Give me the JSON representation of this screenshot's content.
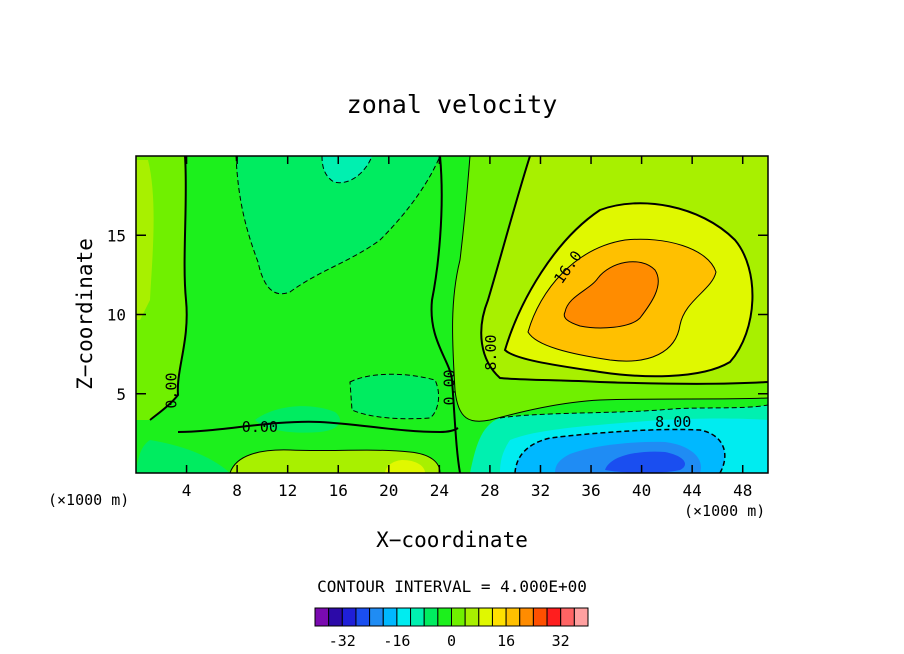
{
  "chart_data": {
    "type": "heatmap",
    "title": "zonal velocity",
    "xlabel": "X−coordinate",
    "ylabel": "Z−coordinate",
    "x_unit_left": "(×1000 m)",
    "x_unit_right": "(×1000 m)",
    "xlim": [
      0,
      50
    ],
    "ylim": [
      0,
      20
    ],
    "xticks": [
      4,
      8,
      12,
      16,
      20,
      24,
      28,
      32,
      36,
      40,
      44,
      48
    ],
    "yticks": [
      5,
      10,
      15
    ],
    "contour_interval_text": "CONTOUR INTERVAL = 4.000E+00",
    "contour_labels": [
      {
        "text": "16.0",
        "x": 34.5,
        "y": 12.8,
        "angle": -55
      },
      {
        "text": "8.00",
        "x": 28.5,
        "y": 7.6,
        "angle": -90
      },
      {
        "text": "8.00",
        "x": 42.5,
        "y": 2.9,
        "angle": 0
      },
      {
        "text": "0.00",
        "x": 3.2,
        "y": 5.2,
        "angle": -90
      },
      {
        "text": "0.00",
        "x": 9.8,
        "y": 2.6,
        "angle": 0
      },
      {
        "text": "0.00",
        "x": 25.2,
        "y": 5.4,
        "angle": -90
      }
    ],
    "colorbar": {
      "levels": [
        -36,
        -32,
        -28,
        -24,
        -20,
        -16,
        -12,
        -8,
        -4,
        0,
        4,
        8,
        12,
        16,
        20,
        24,
        28,
        32,
        36
      ],
      "tick_labels": [
        "-32",
        "-16",
        "0",
        "16",
        "32"
      ],
      "tick_values": [
        -32,
        -16,
        0,
        16,
        32
      ],
      "colors": [
        "#7a0ab0",
        "#2c0aa8",
        "#1f1fd8",
        "#1a4ef0",
        "#1f8cf4",
        "#00b8ff",
        "#00ecf0",
        "#00f0b0",
        "#00ec60",
        "#1cf01c",
        "#70f000",
        "#a8f000",
        "#e0f800",
        "#ffe000",
        "#ffc000",
        "#ff8c00",
        "#ff5000",
        "#ff1e1e",
        "#ff6464",
        "#ffa0a0"
      ]
    },
    "regions": [
      {
        "level": 0,
        "desc": "background"
      },
      {
        "level": 4,
        "desc": "left column"
      },
      {
        "level": -4,
        "desc": "upper middle trough"
      },
      {
        "level": -8,
        "desc": "top middle"
      },
      {
        "level": 4,
        "desc": "right belt"
      },
      {
        "level": 8,
        "desc": "right belt"
      },
      {
        "level": 12,
        "desc": "jet"
      },
      {
        "level": 16,
        "desc": "jet"
      },
      {
        "level": 20,
        "desc": "jet core"
      },
      {
        "level": -8,
        "desc": "lower right"
      },
      {
        "level": -12,
        "desc": "lower right"
      },
      {
        "level": -20,
        "desc": "lower right core"
      },
      {
        "level": 8,
        "desc": "bottom left"
      },
      {
        "level": 12,
        "desc": "bottom left"
      }
    ]
  }
}
